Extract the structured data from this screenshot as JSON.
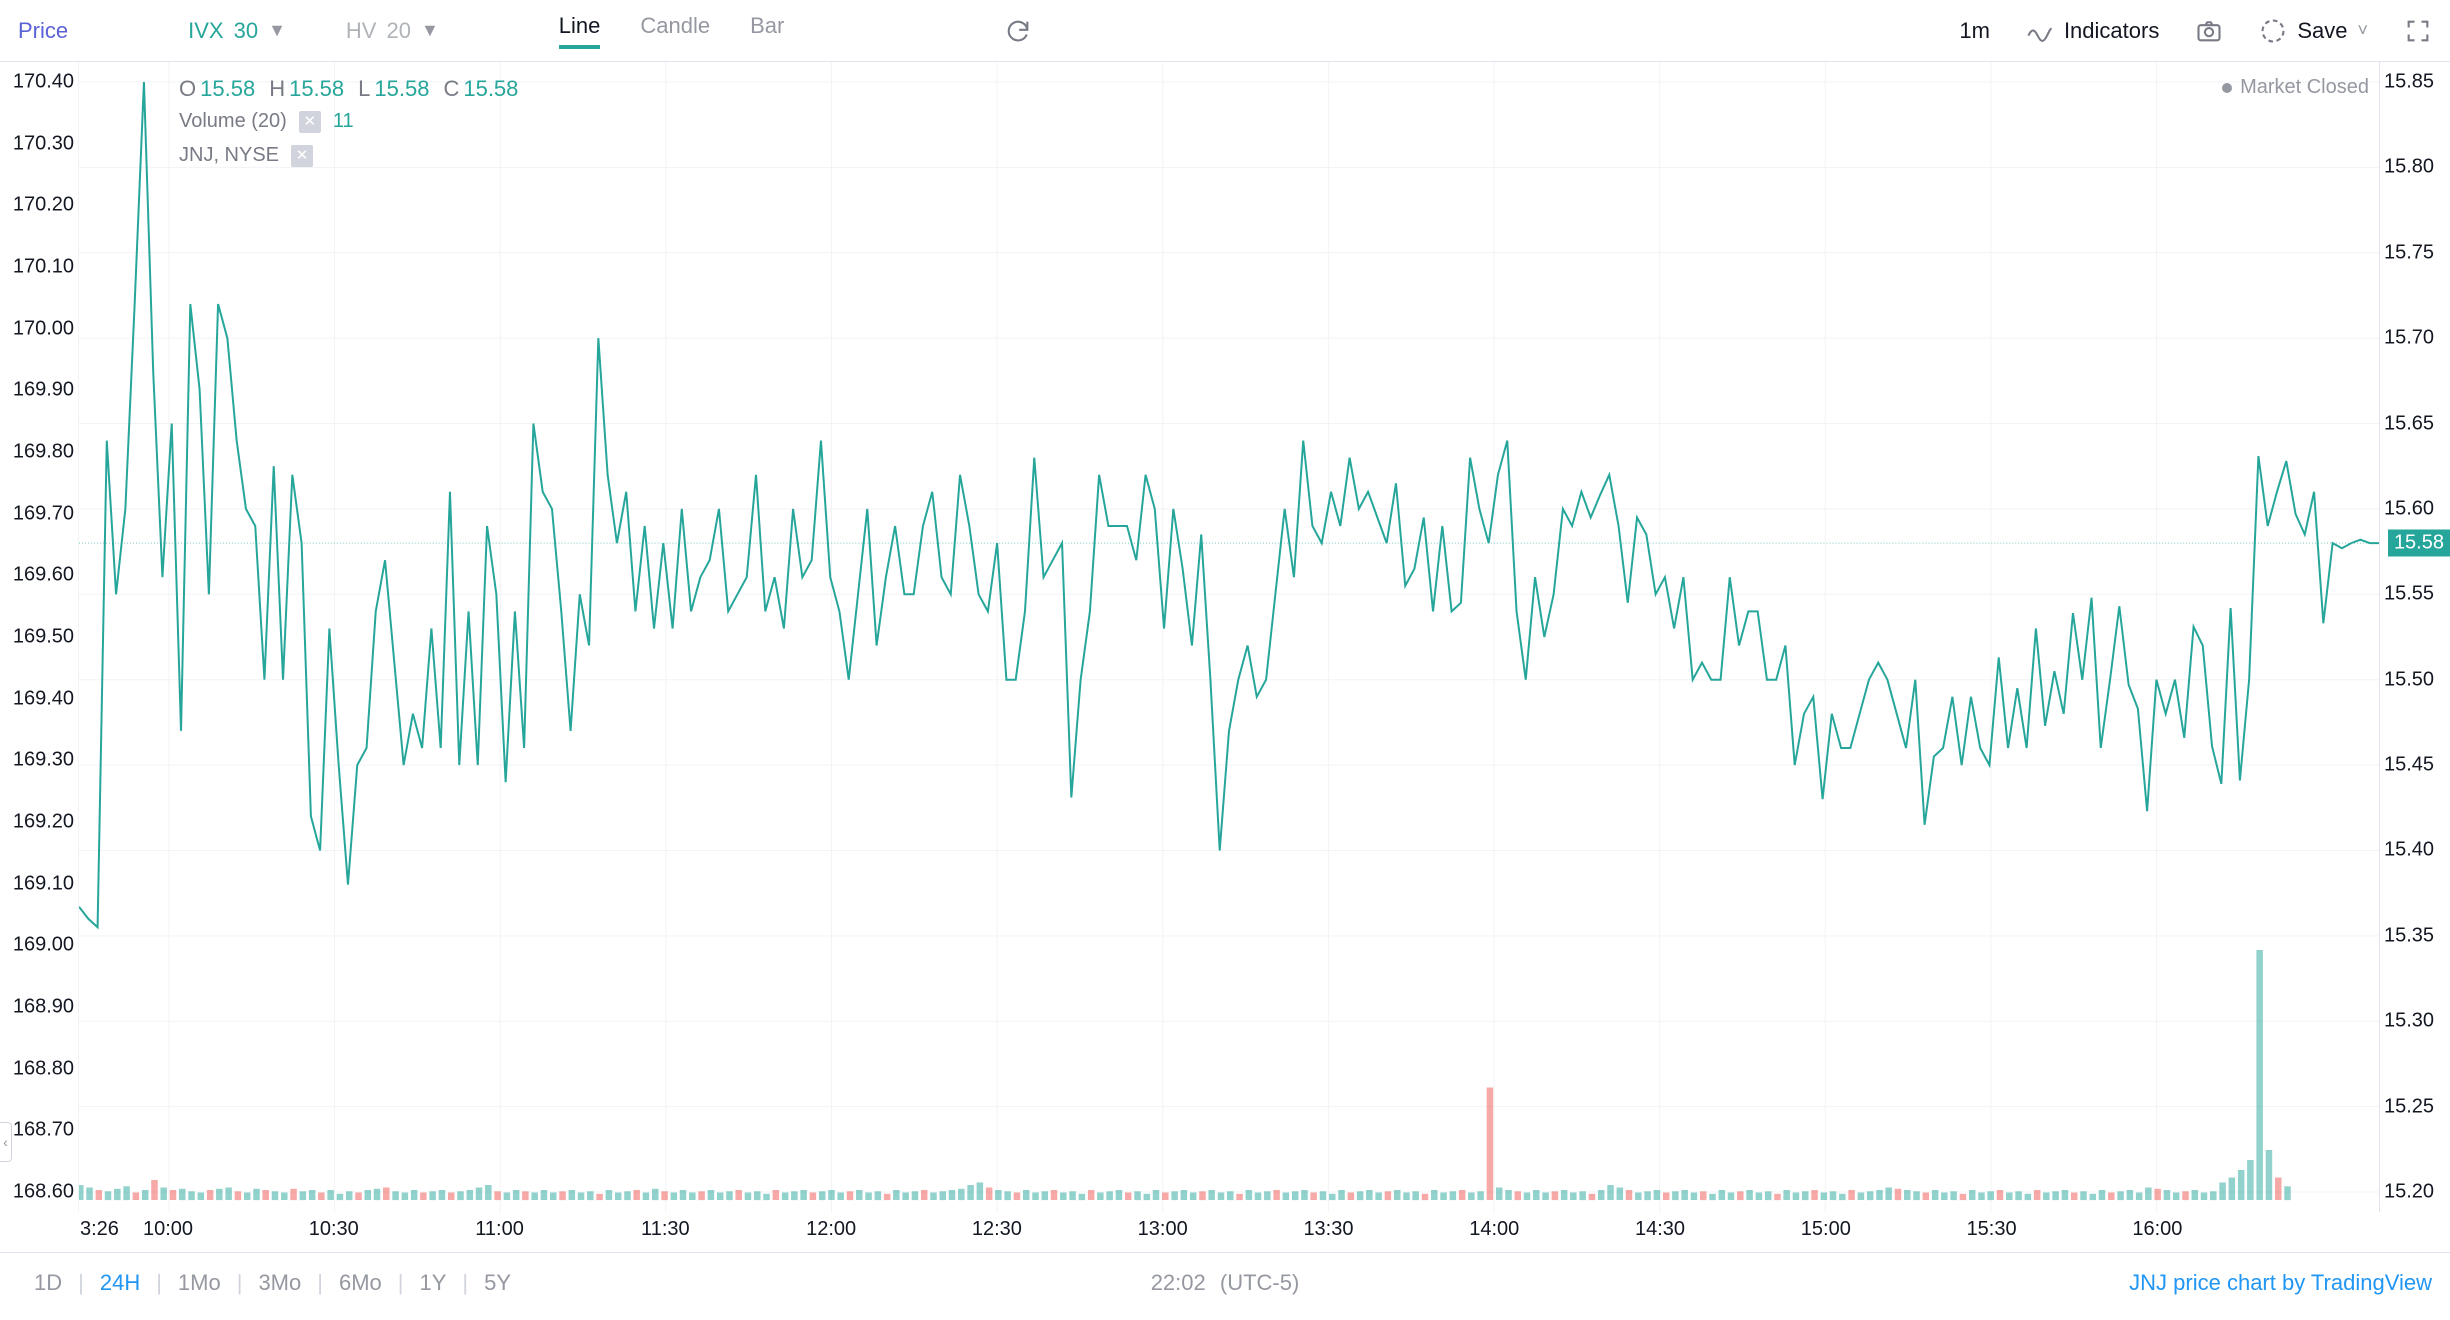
{
  "toolbar": {
    "price": "Price",
    "ivx_label": "IVX",
    "ivx_period": "30",
    "hv_label": "HV",
    "hv_period": "20",
    "types": {
      "line": "Line",
      "candle": "Candle",
      "bar": "Bar"
    },
    "interval": "1m",
    "indicators": "Indicators",
    "save": "Save"
  },
  "ohlc": {
    "o_label": "O",
    "o": "15.58",
    "h_label": "H",
    "h": "15.58",
    "l_label": "L",
    "l": "15.58",
    "c_label": "C",
    "c": "15.58"
  },
  "legend": {
    "volume_label": "Volume (20)",
    "volume_value": "11",
    "symbol": "JNJ, NYSE"
  },
  "market_closed": "Market Closed",
  "price_flag": "15.58",
  "left_axis": {
    "min": 168.6,
    "max": 170.4,
    "step": 0.1,
    "ticks": [
      "170.40",
      "170.30",
      "170.20",
      "170.10",
      "170.00",
      "169.90",
      "169.80",
      "169.70",
      "169.60",
      "169.50",
      "169.40",
      "169.30",
      "169.20",
      "169.10",
      "169.00",
      "168.90",
      "168.80",
      "168.70",
      "168.60"
    ]
  },
  "right_axis": {
    "min": 15.2,
    "max": 15.85,
    "step": 0.05,
    "ticks": [
      "15.85",
      "15.80",
      "15.75",
      "15.70",
      "15.65",
      "15.60",
      "15.55",
      "15.50",
      "15.45",
      "15.40",
      "15.35",
      "15.30",
      "15.25",
      "15.20"
    ],
    "last": 15.58
  },
  "x_axis": {
    "start_label": "3:26",
    "ticks": [
      "10:00",
      "10:30",
      "11:00",
      "11:30",
      "12:00",
      "12:30",
      "13:00",
      "13:30",
      "14:00",
      "14:30",
      "15:00",
      "15:30",
      "16:00"
    ]
  },
  "chart": {
    "type": "line",
    "color": "#26a69a",
    "background": "#ffffff",
    "grid_color": "#f2f3f5",
    "series": [
      15.367,
      15.36,
      15.355,
      15.64,
      15.55,
      15.6,
      15.72,
      15.85,
      15.68,
      15.56,
      15.65,
      15.47,
      15.72,
      15.67,
      15.55,
      15.72,
      15.7,
      15.64,
      15.6,
      15.59,
      15.5,
      15.625,
      15.5,
      15.62,
      15.58,
      15.42,
      15.4,
      15.53,
      15.45,
      15.38,
      15.45,
      15.46,
      15.54,
      15.57,
      15.51,
      15.45,
      15.48,
      15.46,
      15.53,
      15.46,
      15.61,
      15.45,
      15.54,
      15.45,
      15.59,
      15.55,
      15.44,
      15.54,
      15.46,
      15.65,
      15.61,
      15.6,
      15.54,
      15.47,
      15.55,
      15.52,
      15.7,
      15.62,
      15.58,
      15.61,
      15.54,
      15.59,
      15.53,
      15.58,
      15.53,
      15.6,
      15.54,
      15.56,
      15.57,
      15.6,
      15.54,
      15.55,
      15.56,
      15.62,
      15.54,
      15.56,
      15.53,
      15.6,
      15.56,
      15.57,
      15.64,
      15.56,
      15.54,
      15.5,
      15.55,
      15.6,
      15.52,
      15.56,
      15.59,
      15.55,
      15.55,
      15.59,
      15.61,
      15.56,
      15.55,
      15.62,
      15.59,
      15.55,
      15.54,
      15.58,
      15.5,
      15.5,
      15.54,
      15.63,
      15.56,
      15.57,
      15.58,
      15.431,
      15.5,
      15.54,
      15.62,
      15.59,
      15.59,
      15.59,
      15.57,
      15.62,
      15.6,
      15.53,
      15.6,
      15.565,
      15.52,
      15.585,
      15.5,
      15.4,
      15.47,
      15.5,
      15.52,
      15.49,
      15.5,
      15.55,
      15.6,
      15.56,
      15.64,
      15.59,
      15.58,
      15.61,
      15.59,
      15.63,
      15.6,
      15.61,
      15.595,
      15.58,
      15.615,
      15.555,
      15.565,
      15.595,
      15.54,
      15.59,
      15.54,
      15.545,
      15.63,
      15.6,
      15.58,
      15.62,
      15.64,
      15.54,
      15.5,
      15.56,
      15.525,
      15.55,
      15.6,
      15.59,
      15.61,
      15.595,
      15.608,
      15.62,
      15.59,
      15.545,
      15.595,
      15.585,
      15.55,
      15.56,
      15.53,
      15.56,
      15.5,
      15.51,
      15.5,
      15.5,
      15.56,
      15.52,
      15.54,
      15.54,
      15.5,
      15.5,
      15.52,
      15.45,
      15.48,
      15.49,
      15.43,
      15.48,
      15.46,
      15.46,
      15.48,
      15.5,
      15.51,
      15.5,
      15.48,
      15.46,
      15.5,
      15.415,
      15.455,
      15.46,
      15.49,
      15.45,
      15.49,
      15.46,
      15.45,
      15.513,
      15.46,
      15.495,
      15.46,
      15.53,
      15.473,
      15.505,
      15.48,
      15.539,
      15.5,
      15.548,
      15.46,
      15.5,
      15.543,
      15.497,
      15.483,
      15.423,
      15.5,
      15.48,
      15.5,
      15.466,
      15.531,
      15.52,
      15.461,
      15.439,
      15.542,
      15.441,
      15.5,
      15.631,
      15.59,
      15.61,
      15.628,
      15.597,
      15.585,
      15.61,
      15.533,
      15.58,
      15.577,
      15.58,
      15.582,
      15.58,
      15.58
    ],
    "volume": [
      {
        "v": 12,
        "d": "up"
      },
      {
        "v": 10,
        "d": "up"
      },
      {
        "v": 8,
        "d": "dn"
      },
      {
        "v": 7,
        "d": "up"
      },
      {
        "v": 9,
        "d": "up"
      },
      {
        "v": 11,
        "d": "up"
      },
      {
        "v": 6,
        "d": "dn"
      },
      {
        "v": 8,
        "d": "up"
      },
      {
        "v": 16,
        "d": "dn"
      },
      {
        "v": 10,
        "d": "up"
      },
      {
        "v": 8,
        "d": "dn"
      },
      {
        "v": 9,
        "d": "up"
      },
      {
        "v": 7,
        "d": "up"
      },
      {
        "v": 6,
        "d": "up"
      },
      {
        "v": 8,
        "d": "dn"
      },
      {
        "v": 9,
        "d": "up"
      },
      {
        "v": 10,
        "d": "up"
      },
      {
        "v": 7,
        "d": "dn"
      },
      {
        "v": 6,
        "d": "up"
      },
      {
        "v": 9,
        "d": "up"
      },
      {
        "v": 8,
        "d": "dn"
      },
      {
        "v": 7,
        "d": "up"
      },
      {
        "v": 6,
        "d": "up"
      },
      {
        "v": 9,
        "d": "dn"
      },
      {
        "v": 7,
        "d": "up"
      },
      {
        "v": 8,
        "d": "up"
      },
      {
        "v": 6,
        "d": "dn"
      },
      {
        "v": 8,
        "d": "up"
      },
      {
        "v": 5,
        "d": "up"
      },
      {
        "v": 7,
        "d": "up"
      },
      {
        "v": 6,
        "d": "dn"
      },
      {
        "v": 8,
        "d": "up"
      },
      {
        "v": 9,
        "d": "up"
      },
      {
        "v": 10,
        "d": "dn"
      },
      {
        "v": 7,
        "d": "up"
      },
      {
        "v": 6,
        "d": "up"
      },
      {
        "v": 8,
        "d": "up"
      },
      {
        "v": 6,
        "d": "dn"
      },
      {
        "v": 7,
        "d": "up"
      },
      {
        "v": 8,
        "d": "up"
      },
      {
        "v": 6,
        "d": "dn"
      },
      {
        "v": 7,
        "d": "up"
      },
      {
        "v": 8,
        "d": "up"
      },
      {
        "v": 10,
        "d": "up"
      },
      {
        "v": 12,
        "d": "up"
      },
      {
        "v": 7,
        "d": "dn"
      },
      {
        "v": 6,
        "d": "up"
      },
      {
        "v": 8,
        "d": "up"
      },
      {
        "v": 7,
        "d": "dn"
      },
      {
        "v": 6,
        "d": "up"
      },
      {
        "v": 8,
        "d": "up"
      },
      {
        "v": 6,
        "d": "up"
      },
      {
        "v": 7,
        "d": "dn"
      },
      {
        "v": 8,
        "d": "up"
      },
      {
        "v": 6,
        "d": "up"
      },
      {
        "v": 7,
        "d": "up"
      },
      {
        "v": 5,
        "d": "dn"
      },
      {
        "v": 8,
        "d": "up"
      },
      {
        "v": 6,
        "d": "up"
      },
      {
        "v": 7,
        "d": "up"
      },
      {
        "v": 8,
        "d": "dn"
      },
      {
        "v": 6,
        "d": "up"
      },
      {
        "v": 9,
        "d": "up"
      },
      {
        "v": 7,
        "d": "dn"
      },
      {
        "v": 6,
        "d": "up"
      },
      {
        "v": 8,
        "d": "up"
      },
      {
        "v": 6,
        "d": "up"
      },
      {
        "v": 7,
        "d": "dn"
      },
      {
        "v": 8,
        "d": "up"
      },
      {
        "v": 6,
        "d": "up"
      },
      {
        "v": 7,
        "d": "up"
      },
      {
        "v": 8,
        "d": "dn"
      },
      {
        "v": 6,
        "d": "up"
      },
      {
        "v": 7,
        "d": "up"
      },
      {
        "v": 5,
        "d": "up"
      },
      {
        "v": 8,
        "d": "dn"
      },
      {
        "v": 6,
        "d": "up"
      },
      {
        "v": 7,
        "d": "up"
      },
      {
        "v": 8,
        "d": "up"
      },
      {
        "v": 6,
        "d": "dn"
      },
      {
        "v": 7,
        "d": "up"
      },
      {
        "v": 8,
        "d": "up"
      },
      {
        "v": 6,
        "d": "up"
      },
      {
        "v": 7,
        "d": "dn"
      },
      {
        "v": 8,
        "d": "up"
      },
      {
        "v": 6,
        "d": "up"
      },
      {
        "v": 7,
        "d": "up"
      },
      {
        "v": 5,
        "d": "dn"
      },
      {
        "v": 8,
        "d": "up"
      },
      {
        "v": 6,
        "d": "up"
      },
      {
        "v": 7,
        "d": "up"
      },
      {
        "v": 8,
        "d": "dn"
      },
      {
        "v": 6,
        "d": "up"
      },
      {
        "v": 7,
        "d": "up"
      },
      {
        "v": 8,
        "d": "up"
      },
      {
        "v": 9,
        "d": "up"
      },
      {
        "v": 12,
        "d": "up"
      },
      {
        "v": 14,
        "d": "up"
      },
      {
        "v": 10,
        "d": "dn"
      },
      {
        "v": 8,
        "d": "up"
      },
      {
        "v": 7,
        "d": "up"
      },
      {
        "v": 6,
        "d": "dn"
      },
      {
        "v": 8,
        "d": "up"
      },
      {
        "v": 6,
        "d": "up"
      },
      {
        "v": 7,
        "d": "up"
      },
      {
        "v": 8,
        "d": "dn"
      },
      {
        "v": 6,
        "d": "up"
      },
      {
        "v": 7,
        "d": "up"
      },
      {
        "v": 5,
        "d": "up"
      },
      {
        "v": 8,
        "d": "dn"
      },
      {
        "v": 6,
        "d": "up"
      },
      {
        "v": 7,
        "d": "up"
      },
      {
        "v": 8,
        "d": "up"
      },
      {
        "v": 6,
        "d": "dn"
      },
      {
        "v": 7,
        "d": "up"
      },
      {
        "v": 5,
        "d": "up"
      },
      {
        "v": 8,
        "d": "up"
      },
      {
        "v": 6,
        "d": "dn"
      },
      {
        "v": 7,
        "d": "up"
      },
      {
        "v": 8,
        "d": "up"
      },
      {
        "v": 6,
        "d": "up"
      },
      {
        "v": 7,
        "d": "dn"
      },
      {
        "v": 8,
        "d": "up"
      },
      {
        "v": 6,
        "d": "up"
      },
      {
        "v": 7,
        "d": "up"
      },
      {
        "v": 5,
        "d": "dn"
      },
      {
        "v": 8,
        "d": "up"
      },
      {
        "v": 6,
        "d": "up"
      },
      {
        "v": 7,
        "d": "up"
      },
      {
        "v": 8,
        "d": "dn"
      },
      {
        "v": 6,
        "d": "up"
      },
      {
        "v": 7,
        "d": "up"
      },
      {
        "v": 8,
        "d": "up"
      },
      {
        "v": 6,
        "d": "dn"
      },
      {
        "v": 7,
        "d": "up"
      },
      {
        "v": 5,
        "d": "up"
      },
      {
        "v": 8,
        "d": "up"
      },
      {
        "v": 6,
        "d": "dn"
      },
      {
        "v": 7,
        "d": "up"
      },
      {
        "v": 8,
        "d": "up"
      },
      {
        "v": 6,
        "d": "up"
      },
      {
        "v": 7,
        "d": "dn"
      },
      {
        "v": 8,
        "d": "up"
      },
      {
        "v": 6,
        "d": "up"
      },
      {
        "v": 7,
        "d": "up"
      },
      {
        "v": 5,
        "d": "dn"
      },
      {
        "v": 8,
        "d": "up"
      },
      {
        "v": 6,
        "d": "up"
      },
      {
        "v": 7,
        "d": "up"
      },
      {
        "v": 8,
        "d": "dn"
      },
      {
        "v": 6,
        "d": "up"
      },
      {
        "v": 7,
        "d": "up"
      },
      {
        "v": 90,
        "d": "dn"
      },
      {
        "v": 10,
        "d": "up"
      },
      {
        "v": 8,
        "d": "up"
      },
      {
        "v": 7,
        "d": "dn"
      },
      {
        "v": 6,
        "d": "up"
      },
      {
        "v": 8,
        "d": "up"
      },
      {
        "v": 6,
        "d": "up"
      },
      {
        "v": 7,
        "d": "dn"
      },
      {
        "v": 8,
        "d": "up"
      },
      {
        "v": 6,
        "d": "up"
      },
      {
        "v": 7,
        "d": "up"
      },
      {
        "v": 5,
        "d": "dn"
      },
      {
        "v": 8,
        "d": "up"
      },
      {
        "v": 12,
        "d": "up"
      },
      {
        "v": 10,
        "d": "up"
      },
      {
        "v": 8,
        "d": "dn"
      },
      {
        "v": 6,
        "d": "up"
      },
      {
        "v": 7,
        "d": "up"
      },
      {
        "v": 8,
        "d": "up"
      },
      {
        "v": 6,
        "d": "dn"
      },
      {
        "v": 7,
        "d": "up"
      },
      {
        "v": 8,
        "d": "up"
      },
      {
        "v": 6,
        "d": "up"
      },
      {
        "v": 7,
        "d": "dn"
      },
      {
        "v": 5,
        "d": "up"
      },
      {
        "v": 8,
        "d": "up"
      },
      {
        "v": 6,
        "d": "up"
      },
      {
        "v": 7,
        "d": "dn"
      },
      {
        "v": 8,
        "d": "up"
      },
      {
        "v": 6,
        "d": "up"
      },
      {
        "v": 7,
        "d": "up"
      },
      {
        "v": 5,
        "d": "dn"
      },
      {
        "v": 8,
        "d": "up"
      },
      {
        "v": 6,
        "d": "up"
      },
      {
        "v": 7,
        "d": "up"
      },
      {
        "v": 8,
        "d": "dn"
      },
      {
        "v": 6,
        "d": "up"
      },
      {
        "v": 7,
        "d": "up"
      },
      {
        "v": 5,
        "d": "up"
      },
      {
        "v": 8,
        "d": "dn"
      },
      {
        "v": 6,
        "d": "up"
      },
      {
        "v": 7,
        "d": "up"
      },
      {
        "v": 8,
        "d": "up"
      },
      {
        "v": 10,
        "d": "up"
      },
      {
        "v": 9,
        "d": "dn"
      },
      {
        "v": 8,
        "d": "up"
      },
      {
        "v": 7,
        "d": "up"
      },
      {
        "v": 6,
        "d": "dn"
      },
      {
        "v": 8,
        "d": "up"
      },
      {
        "v": 6,
        "d": "up"
      },
      {
        "v": 7,
        "d": "up"
      },
      {
        "v": 5,
        "d": "dn"
      },
      {
        "v": 8,
        "d": "up"
      },
      {
        "v": 6,
        "d": "up"
      },
      {
        "v": 7,
        "d": "up"
      },
      {
        "v": 8,
        "d": "dn"
      },
      {
        "v": 6,
        "d": "up"
      },
      {
        "v": 7,
        "d": "up"
      },
      {
        "v": 5,
        "d": "up"
      },
      {
        "v": 8,
        "d": "dn"
      },
      {
        "v": 6,
        "d": "up"
      },
      {
        "v": 7,
        "d": "up"
      },
      {
        "v": 8,
        "d": "up"
      },
      {
        "v": 6,
        "d": "dn"
      },
      {
        "v": 7,
        "d": "up"
      },
      {
        "v": 5,
        "d": "up"
      },
      {
        "v": 8,
        "d": "up"
      },
      {
        "v": 6,
        "d": "dn"
      },
      {
        "v": 7,
        "d": "up"
      },
      {
        "v": 8,
        "d": "up"
      },
      {
        "v": 6,
        "d": "up"
      },
      {
        "v": 10,
        "d": "up"
      },
      {
        "v": 9,
        "d": "dn"
      },
      {
        "v": 8,
        "d": "up"
      },
      {
        "v": 6,
        "d": "up"
      },
      {
        "v": 7,
        "d": "dn"
      },
      {
        "v": 8,
        "d": "up"
      },
      {
        "v": 6,
        "d": "up"
      },
      {
        "v": 7,
        "d": "up"
      },
      {
        "v": 14,
        "d": "up"
      },
      {
        "v": 18,
        "d": "up"
      },
      {
        "v": 24,
        "d": "up"
      },
      {
        "v": 32,
        "d": "up"
      },
      {
        "v": 200,
        "d": "up"
      },
      {
        "v": 40,
        "d": "up"
      },
      {
        "v": 18,
        "d": "dn"
      },
      {
        "v": 11,
        "d": "up"
      }
    ]
  },
  "bottom": {
    "ranges": [
      "1D",
      "24H",
      "1Mo",
      "3Mo",
      "6Mo",
      "1Y",
      "5Y"
    ],
    "active": "24H",
    "clock": "22:02",
    "tz": "(UTC-5)",
    "attribution": "JNJ price chart by TradingView"
  },
  "colors": {
    "accent": "#26a69a",
    "red": "#ef5350",
    "blue": "#2196f3",
    "text": "#131722",
    "muted": "#9598a1"
  }
}
